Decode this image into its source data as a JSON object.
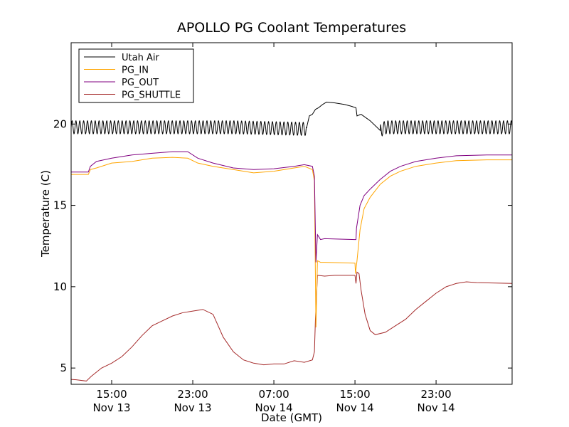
{
  "chart_data": {
    "type": "line",
    "title": "APOLLO PG Coolant Temperatures",
    "xlabel": "Date (GMT)",
    "ylabel": "Temperature (C)",
    "xlim_hours": [
      0,
      43.5
    ],
    "ylim": [
      4,
      25
    ],
    "y_ticks": [
      5,
      10,
      15,
      20
    ],
    "x_ticks": [
      {
        "hour": 4.0,
        "time": "15:00",
        "date": "Nov 13"
      },
      {
        "hour": 12.0,
        "time": "23:00",
        "date": "Nov 13"
      },
      {
        "hour": 20.0,
        "time": "07:00",
        "date": "Nov 14"
      },
      {
        "hour": 28.0,
        "time": "15:00",
        "date": "Nov 14"
      },
      {
        "hour": 36.0,
        "time": "23:00",
        "date": "Nov 14"
      }
    ],
    "legend_position": "upper-left",
    "series": [
      {
        "name": "Utah Air",
        "color": "#000000",
        "oscillation": {
          "amplitude": 0.4,
          "period_hours": 0.38,
          "ranges": [
            [
              0,
              23.2
            ],
            [
              30.5,
              43.5
            ]
          ]
        },
        "points": [
          [
            0,
            19.8
          ],
          [
            8,
            19.8
          ],
          [
            16,
            19.8
          ],
          [
            23.2,
            19.7
          ],
          [
            23.5,
            20.5
          ],
          [
            23.8,
            20.6
          ],
          [
            24.1,
            20.9
          ],
          [
            24.4,
            21.0
          ],
          [
            24.8,
            21.2
          ],
          [
            25.2,
            21.35
          ],
          [
            26,
            21.3
          ],
          [
            27,
            21.2
          ],
          [
            27.6,
            21.1
          ],
          [
            28.1,
            21.0
          ],
          [
            28.2,
            20.5
          ],
          [
            28.6,
            20.6
          ],
          [
            29.5,
            20.2
          ],
          [
            30.5,
            19.6
          ],
          [
            31,
            19.8
          ],
          [
            43.5,
            19.8
          ]
        ]
      },
      {
        "name": "PG_IN",
        "color": "#ffa500",
        "points": [
          [
            0,
            16.9
          ],
          [
            1.7,
            16.9
          ],
          [
            1.9,
            17.2
          ],
          [
            2.5,
            17.3
          ],
          [
            4,
            17.6
          ],
          [
            6,
            17.7
          ],
          [
            8,
            17.9
          ],
          [
            10,
            17.95
          ],
          [
            11.5,
            17.9
          ],
          [
            12.5,
            17.6
          ],
          [
            14,
            17.4
          ],
          [
            16,
            17.2
          ],
          [
            18,
            17.0
          ],
          [
            20,
            17.1
          ],
          [
            22,
            17.3
          ],
          [
            23,
            17.4
          ],
          [
            23.8,
            17.2
          ],
          [
            24.0,
            16.5
          ],
          [
            24.15,
            7.5
          ],
          [
            24.3,
            11.6
          ],
          [
            24.6,
            11.5
          ],
          [
            25,
            11.5
          ],
          [
            28,
            11.45
          ],
          [
            28.05,
            10.8
          ],
          [
            28.2,
            11.6
          ],
          [
            28.5,
            13.5
          ],
          [
            28.9,
            14.8
          ],
          [
            29.5,
            15.5
          ],
          [
            30.5,
            16.3
          ],
          [
            31.5,
            16.8
          ],
          [
            32.5,
            17.1
          ],
          [
            34,
            17.4
          ],
          [
            36,
            17.6
          ],
          [
            38,
            17.75
          ],
          [
            41,
            17.8
          ],
          [
            43.5,
            17.8
          ]
        ]
      },
      {
        "name": "PG_OUT",
        "color": "#800080",
        "points": [
          [
            0,
            17.05
          ],
          [
            1.7,
            17.05
          ],
          [
            1.9,
            17.4
          ],
          [
            2.5,
            17.7
          ],
          [
            4,
            17.9
          ],
          [
            6,
            18.1
          ],
          [
            8,
            18.2
          ],
          [
            10,
            18.3
          ],
          [
            11.5,
            18.3
          ],
          [
            12.5,
            17.9
          ],
          [
            14,
            17.6
          ],
          [
            16,
            17.3
          ],
          [
            18,
            17.2
          ],
          [
            20,
            17.25
          ],
          [
            22,
            17.4
          ],
          [
            23,
            17.5
          ],
          [
            23.8,
            17.4
          ],
          [
            24.0,
            16.8
          ],
          [
            24.15,
            11.5
          ],
          [
            24.3,
            13.2
          ],
          [
            24.6,
            12.9
          ],
          [
            25,
            12.95
          ],
          [
            28,
            12.9
          ],
          [
            28.1,
            12.9
          ],
          [
            28.15,
            13.6
          ],
          [
            28.5,
            15.0
          ],
          [
            28.9,
            15.6
          ],
          [
            29.5,
            16.0
          ],
          [
            30.5,
            16.6
          ],
          [
            31.5,
            17.1
          ],
          [
            32.5,
            17.4
          ],
          [
            34,
            17.7
          ],
          [
            36,
            17.9
          ],
          [
            38,
            18.05
          ],
          [
            41,
            18.1
          ],
          [
            43.5,
            18.1
          ]
        ]
      },
      {
        "name": "PG_SHUTTLE",
        "color": "#a52a2a",
        "points": [
          [
            0,
            4.3
          ],
          [
            0.5,
            4.28
          ],
          [
            1.5,
            4.2
          ],
          [
            2,
            4.5
          ],
          [
            3,
            5.0
          ],
          [
            4,
            5.3
          ],
          [
            5,
            5.7
          ],
          [
            6,
            6.3
          ],
          [
            7,
            7.0
          ],
          [
            8,
            7.6
          ],
          [
            9,
            7.9
          ],
          [
            10,
            8.2
          ],
          [
            11,
            8.4
          ],
          [
            12,
            8.5
          ],
          [
            13,
            8.6
          ],
          [
            14,
            8.3
          ],
          [
            15,
            6.9
          ],
          [
            16,
            6.0
          ],
          [
            17,
            5.5
          ],
          [
            18,
            5.3
          ],
          [
            19,
            5.2
          ],
          [
            20,
            5.25
          ],
          [
            21,
            5.25
          ],
          [
            22,
            5.45
          ],
          [
            23,
            5.35
          ],
          [
            23.8,
            5.5
          ],
          [
            24.0,
            6.0
          ],
          [
            24.1,
            8.0
          ],
          [
            24.3,
            10.7
          ],
          [
            25,
            10.65
          ],
          [
            26,
            10.7
          ],
          [
            27,
            10.7
          ],
          [
            28,
            10.7
          ],
          [
            28.1,
            10.2
          ],
          [
            28.2,
            10.9
          ],
          [
            28.4,
            10.8
          ],
          [
            28.6,
            9.8
          ],
          [
            29,
            8.3
          ],
          [
            29.5,
            7.3
          ],
          [
            30,
            7.05
          ],
          [
            31,
            7.2
          ],
          [
            32,
            7.6
          ],
          [
            33,
            8.0
          ],
          [
            34,
            8.6
          ],
          [
            35,
            9.1
          ],
          [
            36,
            9.6
          ],
          [
            37,
            10.0
          ],
          [
            38,
            10.2
          ],
          [
            39,
            10.3
          ],
          [
            40,
            10.25
          ],
          [
            43.5,
            10.2
          ]
        ]
      }
    ]
  }
}
